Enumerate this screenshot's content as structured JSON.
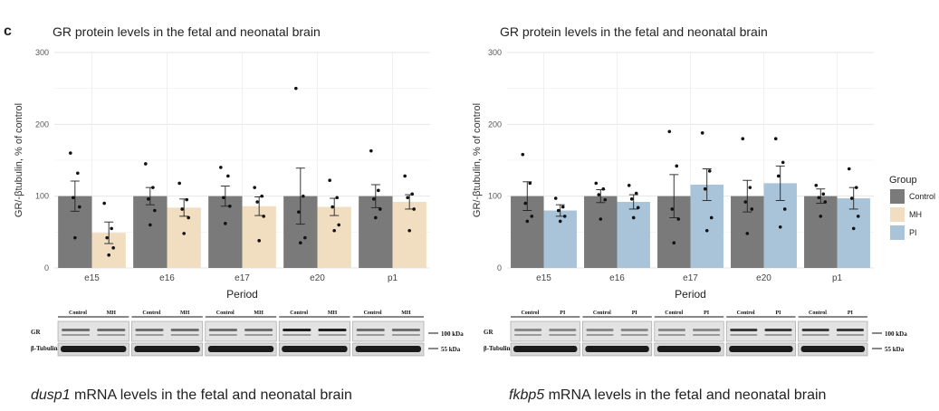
{
  "panel_label": "c",
  "chart_data": [
    {
      "type": "bar",
      "title": "GR protein levels in the fetal and neonatal brain",
      "xlabel": "Period",
      "ylabel": "GR/-βtubulin, % of control",
      "ylim": [
        0,
        300
      ],
      "yticks": [
        "0",
        "100",
        "200",
        "300"
      ],
      "categories": [
        "e15",
        "e16",
        "e17",
        "e20",
        "p1"
      ],
      "series": [
        {
          "name": "Control",
          "color": "#7a7a7a",
          "values": [
            100,
            100,
            100,
            100,
            100
          ],
          "se": [
            21,
            12,
            14,
            39,
            16
          ],
          "points": [
            [
              160,
              132,
              98,
              85,
              42
            ],
            [
              145,
              112,
              96,
              80,
              60
            ],
            [
              140,
              128,
              98,
              86,
              62
            ],
            [
              250,
              100,
              78,
              42,
              35
            ],
            [
              163,
              108,
              96,
              82,
              70
            ]
          ]
        },
        {
          "name": "MH",
          "color": "#f1dec0",
          "values": [
            49,
            84,
            86,
            85,
            92
          ],
          "se": [
            15,
            12,
            13,
            12,
            10
          ],
          "points": [
            [
              90,
              55,
              42,
              28,
              18
            ],
            [
              118,
              95,
              82,
              70,
              48
            ],
            [
              112,
              100,
              92,
              72,
              38
            ],
            [
              122,
              98,
              85,
              60,
              52
            ],
            [
              128,
              103,
              98,
              82,
              52
            ]
          ]
        }
      ],
      "blot": {
        "lane_labels": [
          "Control",
          "MH"
        ],
        "row_labels": [
          "GR",
          "β-Tubulin"
        ],
        "markers": [
          "100 kDa",
          "55 kDa"
        ]
      }
    },
    {
      "type": "bar",
      "title": "GR protein levels in the fetal and neonatal brain",
      "xlabel": "Period",
      "ylabel": "GR/-βtubulin, % of control",
      "ylim": [
        0,
        300
      ],
      "yticks": [
        "0",
        "100",
        "200",
        "300"
      ],
      "categories": [
        "e15",
        "e16",
        "e17",
        "e20",
        "p1"
      ],
      "legend": {
        "title": "Group",
        "position": "right"
      },
      "series": [
        {
          "name": "Control",
          "color": "#7a7a7a",
          "values": [
            100,
            100,
            100,
            100,
            100
          ],
          "se": [
            20,
            9,
            30,
            22,
            10
          ],
          "points": [
            [
              158,
              118,
              90,
              72,
              65
            ],
            [
              118,
              110,
              102,
              95,
              68
            ],
            [
              190,
              142,
              82,
              68,
              35
            ],
            [
              180,
              112,
              92,
              82,
              48
            ],
            [
              115,
              103,
              98,
              92,
              72
            ]
          ]
        },
        {
          "name": "PI",
          "color": "#a9c3d8",
          "values": [
            80,
            92,
            116,
            118,
            97
          ],
          "se": [
            8,
            10,
            22,
            24,
            15
          ],
          "points": [
            [
              97,
              85,
              80,
              72,
              65
            ],
            [
              115,
              104,
              96,
              84,
              70
            ],
            [
              188,
              135,
              110,
              70,
              52
            ],
            [
              180,
              147,
              128,
              82,
              57
            ],
            [
              138,
              112,
              97,
              72,
              55
            ]
          ]
        }
      ],
      "blot": {
        "lane_labels": [
          "Control",
          "PI"
        ],
        "row_labels": [
          "GR",
          "β-Tubulin"
        ],
        "markers": [
          "100 kDa",
          "55 kDa"
        ]
      }
    }
  ],
  "bottom_titles": [
    {
      "gene": "dusp1",
      "rest": " mRNA levels in the fetal and neonatal brain"
    },
    {
      "gene": "fkbp5",
      "rest": " mRNA levels in the fetal and neonatal brain"
    }
  ]
}
